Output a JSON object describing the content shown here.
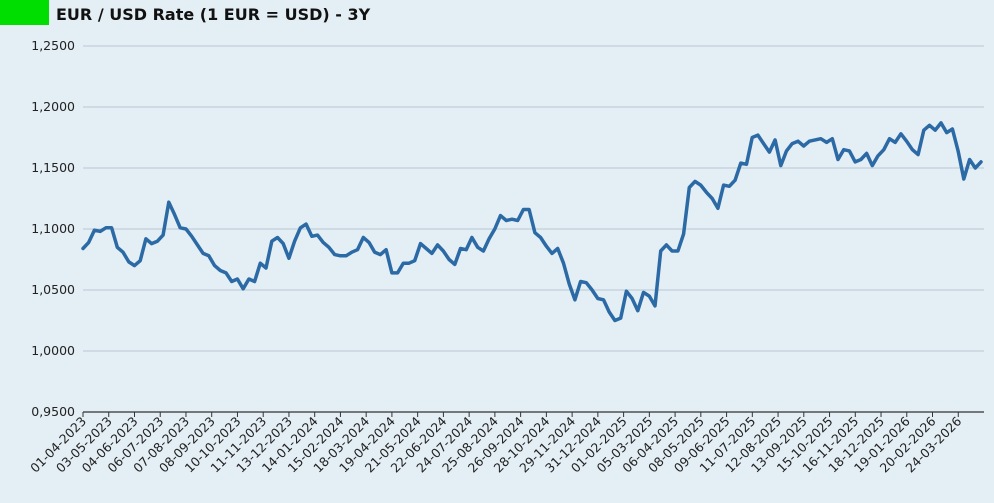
{
  "chart_data": {
    "type": "line",
    "title": "EUR / USD Rate (1 EUR = USD) - 3Y",
    "legend_color": "#00dd00",
    "line_color": "#2c6aa5",
    "grid": true,
    "ylim": [
      0.95,
      1.25
    ],
    "y_ticks": [
      "0,9500",
      "1,0000",
      "1,0500",
      "1,1000",
      "1,1500",
      "1,2000",
      "1,2500"
    ],
    "x_tick_labels": [
      "01-04-2023",
      "03-05-2023",
      "04-06-2023",
      "06-07-2023",
      "07-08-2023",
      "08-09-2023",
      "10-10-2023",
      "11-11-2023",
      "13-12-2023",
      "14-01-2024",
      "15-02-2024",
      "18-03-2024",
      "19-04-2024",
      "21-05-2024",
      "22-06-2024",
      "24-07-2024",
      "25-08-2024",
      "26-09-2024",
      "28-10-2024",
      "29-11-2024",
      "31-12-2024",
      "01-02-2025",
      "05-03-2025",
      "06-04-2025",
      "08-05-2025",
      "09-06-2025",
      "11-07-2025",
      "12-08-2025",
      "13-09-2025",
      "15-10-2025",
      "16-11-2025",
      "18-12-2025",
      "19-01-2026",
      "20-02-2026",
      "24-03-2026"
    ],
    "values": [
      1.084,
      1.089,
      1.099,
      1.098,
      1.101,
      1.101,
      1.085,
      1.081,
      1.073,
      1.07,
      1.074,
      1.092,
      1.088,
      1.09,
      1.095,
      1.122,
      1.112,
      1.101,
      1.1,
      1.094,
      1.087,
      1.08,
      1.078,
      1.07,
      1.066,
      1.064,
      1.057,
      1.059,
      1.051,
      1.059,
      1.057,
      1.072,
      1.068,
      1.09,
      1.093,
      1.088,
      1.076,
      1.09,
      1.101,
      1.104,
      1.094,
      1.095,
      1.089,
      1.085,
      1.079,
      1.078,
      1.078,
      1.081,
      1.083,
      1.093,
      1.089,
      1.081,
      1.079,
      1.083,
      1.064,
      1.064,
      1.072,
      1.072,
      1.074,
      1.088,
      1.084,
      1.08,
      1.087,
      1.082,
      1.075,
      1.071,
      1.084,
      1.083,
      1.093,
      1.085,
      1.082,
      1.092,
      1.1,
      1.111,
      1.107,
      1.108,
      1.107,
      1.116,
      1.116,
      1.097,
      1.093,
      1.086,
      1.08,
      1.084,
      1.072,
      1.055,
      1.042,
      1.057,
      1.056,
      1.05,
      1.043,
      1.042,
      1.032,
      1.025,
      1.027,
      1.049,
      1.043,
      1.033,
      1.048,
      1.045,
      1.037,
      1.082,
      1.087,
      1.082,
      1.082,
      1.096,
      1.134,
      1.139,
      1.136,
      1.13,
      1.125,
      1.117,
      1.136,
      1.135,
      1.14,
      1.154,
      1.153,
      1.175,
      1.177,
      1.17,
      1.163,
      1.173,
      1.152,
      1.164,
      1.17,
      1.172,
      1.168,
      1.172,
      1.173,
      1.174,
      1.171,
      1.174,
      1.157,
      1.165,
      1.164,
      1.155,
      1.157,
      1.162,
      1.152,
      1.16,
      1.165,
      1.174,
      1.171,
      1.178,
      1.172,
      1.165,
      1.161,
      1.181,
      1.185,
      1.181,
      1.187,
      1.179,
      1.182,
      1.164,
      1.141,
      1.157,
      1.15,
      1.155
    ]
  }
}
